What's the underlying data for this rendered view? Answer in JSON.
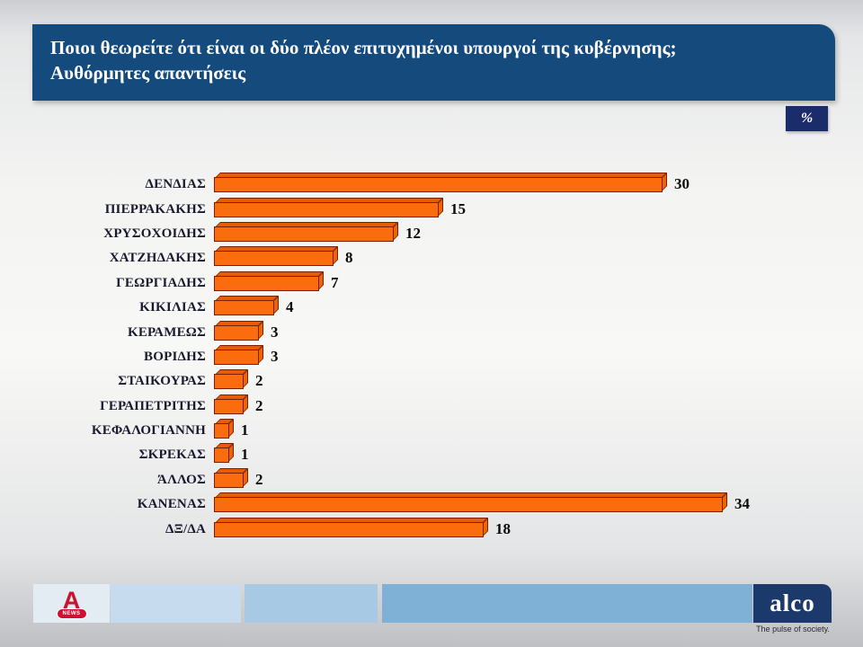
{
  "header": {
    "title_line1": "Ποιοι θεωρείτε ότι είναι οι δύο πλέον επιτυχημένοι υπουργοί της κυβέρνησης;",
    "title_line2": "Αυθόρμητες απαντήσεις",
    "unit_badge": "%"
  },
  "chart_data": {
    "type": "bar",
    "orientation": "horizontal",
    "unit": "%",
    "title": "Ποιοι θεωρείτε ότι είναι οι δύο πλέον επιτυχημένοι υπουργοί της κυβέρνησης; Αυθόρμητες απαντήσεις",
    "categories": [
      "ΔΕΝΔΙΑΣ",
      "ΠΙΕΡΡΑΚΑΚΗΣ",
      "ΧΡΥΣΟΧΟΙΔΗΣ",
      "ΧΑΤΖΗΔΑΚΗΣ",
      "ΓΕΩΡΓΙΑΔΗΣ",
      "ΚΙΚΙΛΙΑΣ",
      "ΚΕΡΑΜΕΩΣ",
      "ΒΟΡΙΔΗΣ",
      "ΣΤΑΙΚΟΥΡΑΣ",
      "ΓΕΡΑΠΕΤΡΙΤΗΣ",
      "ΚΕΦΑΛΟΓΙΑΝΝΗ",
      "ΣΚΡΕΚΑΣ",
      "ΆΛΛΟΣ",
      "ΚΑΝΕΝΑΣ",
      "ΔΞ/ΔΑ"
    ],
    "values": [
      30,
      15,
      12,
      8,
      7,
      4,
      3,
      3,
      2,
      2,
      1,
      1,
      2,
      34,
      18
    ],
    "xlim": [
      0,
      36
    ],
    "grid": false,
    "legend": false,
    "value_labels": true,
    "bar_style": "3d-orange"
  },
  "footer": {
    "alpha_letter": "A",
    "alpha_news_label": "NEWS",
    "alco_text": "alco",
    "alco_tagline": "The pulse of society."
  },
  "colors": {
    "title_bg": "#154a7c",
    "badge_bg": "#1b2c6a",
    "bar_fill": "#fa6c0e",
    "bar_edge": "#7a2000",
    "bar_top": "#e65d05",
    "bar_side": "#ef6307",
    "label_color": "#191a30",
    "value_color": "#0a0a0a",
    "footer_box_1": "#e3ebf3",
    "footer_box_2": "#c6dbee",
    "footer_box_3": "#a8c9e4",
    "footer_box_4": "#7fb0d6",
    "alco_bg": "#1b3a6b",
    "alpha_red": "#c81430"
  }
}
